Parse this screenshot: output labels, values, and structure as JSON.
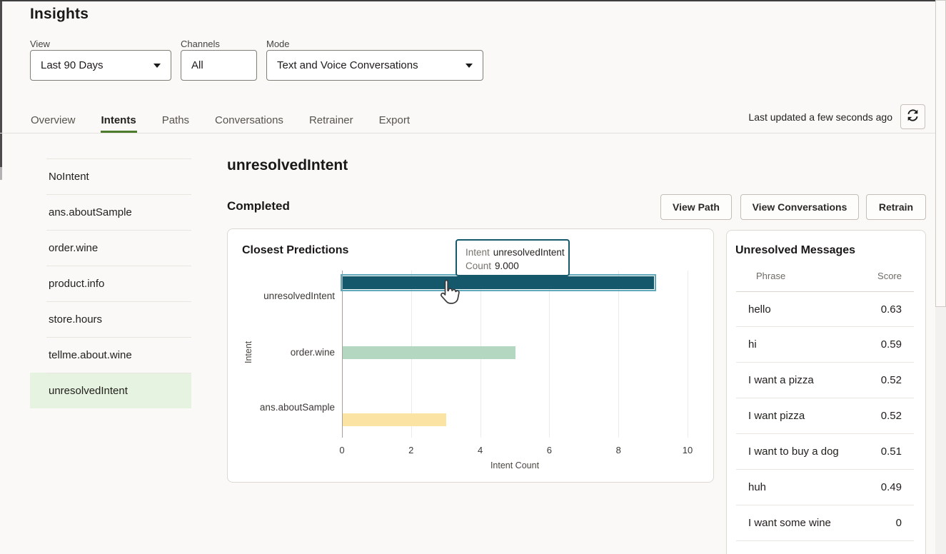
{
  "page": {
    "title": "Insights"
  },
  "filters": {
    "view": {
      "label": "View",
      "value": "Last 90 Days"
    },
    "channels": {
      "label": "Channels",
      "value": "All"
    },
    "mode": {
      "label": "Mode",
      "value": "Text and Voice Conversations"
    }
  },
  "tabs": {
    "items": [
      {
        "label": "Overview"
      },
      {
        "label": "Intents",
        "active": true
      },
      {
        "label": "Paths"
      },
      {
        "label": "Conversations"
      },
      {
        "label": "Retrainer"
      },
      {
        "label": "Export"
      }
    ],
    "last_updated": "Last updated a few seconds ago"
  },
  "sidebar": {
    "items": [
      {
        "label": "NoIntent"
      },
      {
        "label": "ans.aboutSample"
      },
      {
        "label": "order.wine"
      },
      {
        "label": "product.info"
      },
      {
        "label": "store.hours"
      },
      {
        "label": "tellme.about.wine"
      },
      {
        "label": "unresolvedIntent",
        "selected": true
      }
    ]
  },
  "main": {
    "intent_title": "unresolvedIntent",
    "status": "Completed",
    "actions": {
      "view_path": "View Path",
      "view_conversations": "View Conversations",
      "retrain": "Retrain"
    }
  },
  "chart_data": {
    "type": "bar",
    "orientation": "horizontal",
    "title": "Closest Predictions",
    "categories": [
      "unresolvedIntent",
      "order.wine",
      "ans.aboutSample"
    ],
    "series": [
      {
        "name": "unresolvedIntent",
        "value": 9,
        "color": "#15586b",
        "selected": true
      },
      {
        "name": "order.wine",
        "value": 5,
        "color": "#b3d7c1"
      },
      {
        "name": "ans.aboutSample",
        "value": 3,
        "color": "#fbe3a3"
      }
    ],
    "xlabel": "Intent Count",
    "ylabel": "Intent",
    "xlim": [
      0,
      10
    ],
    "xticks": [
      0,
      2,
      4,
      6,
      8,
      10
    ],
    "grid": "vertical",
    "tooltip": {
      "intent_label": "Intent",
      "intent_value": "unresolvedIntent",
      "count_label": "Count",
      "count_value": "9.000"
    }
  },
  "messages": {
    "title": "Unresolved Messages",
    "columns": [
      "Phrase",
      "Score"
    ],
    "rows": [
      {
        "phrase": "hello",
        "score": "0.63"
      },
      {
        "phrase": "hi",
        "score": "0.59"
      },
      {
        "phrase": "I want a pizza",
        "score": "0.52"
      },
      {
        "phrase": "I want pizza",
        "score": "0.52"
      },
      {
        "phrase": "I want to buy a dog",
        "score": "0.51"
      },
      {
        "phrase": "huh",
        "score": "0.49"
      },
      {
        "phrase": "I want some wine",
        "score": "0"
      }
    ]
  },
  "colors": {
    "accent_green_underline": "#4c7c2b",
    "selected_item_bg": "#e6f3e0",
    "bar_selected_outline": "#5fa8bc",
    "tooltip_border": "#15596b"
  }
}
